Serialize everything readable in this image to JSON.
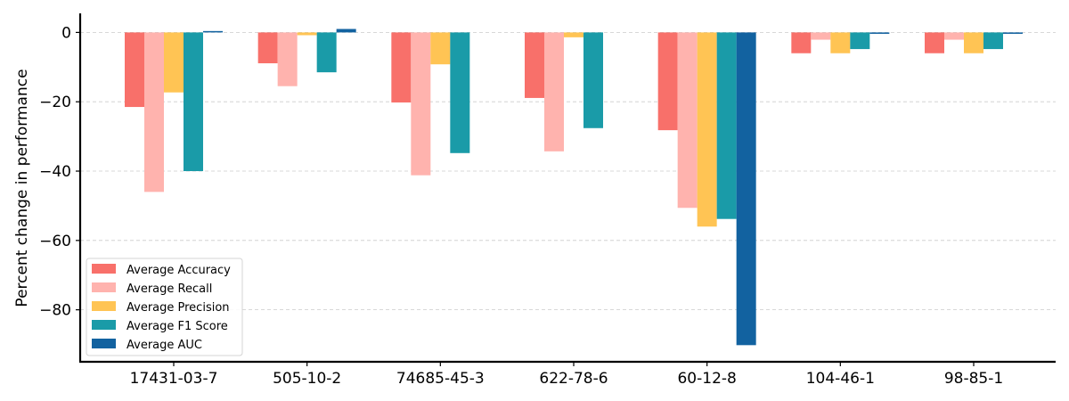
{
  "chart_data": {
    "type": "bar",
    "title": "",
    "xlabel": "",
    "ylabel": "Percent change in performance",
    "ylim": [
      -95,
      5.5
    ],
    "yticks": [
      0,
      -20,
      -40,
      -60,
      -80
    ],
    "grid": "horizontal dashed",
    "legend_position": "lower-left",
    "categories": [
      "17431-03-7",
      "505-10-2",
      "74685-45-3",
      "622-78-6",
      "60-12-8",
      "104-46-1",
      "98-85-1"
    ],
    "series": [
      {
        "name": "Average Accuracy",
        "color": "#f8706a",
        "values": [
          -21.5,
          -8.9,
          -20.2,
          -18.9,
          -28.2,
          -6.0,
          -6.0
        ]
      },
      {
        "name": "Average Recall",
        "color": "#ffb3ae",
        "values": [
          -46.0,
          -15.5,
          -41.2,
          -34.3,
          -50.6,
          -2.1,
          -2.1
        ]
      },
      {
        "name": "Average Precision",
        "color": "#ffc454",
        "values": [
          -17.3,
          -0.8,
          -9.2,
          -1.4,
          -56.0,
          -6.0,
          -6.0
        ]
      },
      {
        "name": "Average F1 Score",
        "color": "#1a9ba8",
        "values": [
          -40.0,
          -11.5,
          -34.8,
          -27.6,
          -53.8,
          -4.8,
          -4.8
        ]
      },
      {
        "name": "Average AUC",
        "color": "#1262a0",
        "values": [
          0.4,
          1.0,
          0.0,
          0.0,
          -90.2,
          -0.4,
          -0.4
        ]
      }
    ]
  }
}
